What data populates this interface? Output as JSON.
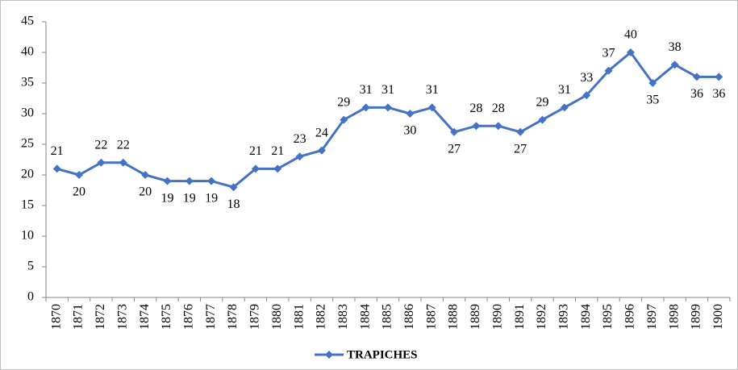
{
  "chart_data": {
    "type": "line",
    "categories": [
      "1870",
      "1871",
      "1872",
      "1873",
      "1874",
      "1875",
      "1876",
      "1877",
      "1878",
      "1879",
      "1880",
      "1881",
      "1882",
      "1883",
      "1884",
      "1885",
      "1886",
      "1887",
      "1888",
      "1889",
      "1890",
      "1891",
      "1892",
      "1893",
      "1894",
      "1895",
      "1896",
      "1897",
      "1898",
      "1899",
      "1900"
    ],
    "series": [
      {
        "name": "TRAPICHES",
        "color": "#4472c4",
        "values": [
          21,
          20,
          22,
          22,
          20,
          19,
          19,
          19,
          18,
          21,
          21,
          23,
          24,
          29,
          31,
          31,
          30,
          31,
          27,
          28,
          28,
          27,
          29,
          31,
          33,
          37,
          40,
          35,
          38,
          36,
          36
        ]
      }
    ],
    "ylim": [
      0,
      45
    ],
    "yticks": [
      0,
      5,
      10,
      15,
      20,
      25,
      30,
      35,
      40,
      45
    ],
    "grid": false,
    "legend": "bottom"
  }
}
